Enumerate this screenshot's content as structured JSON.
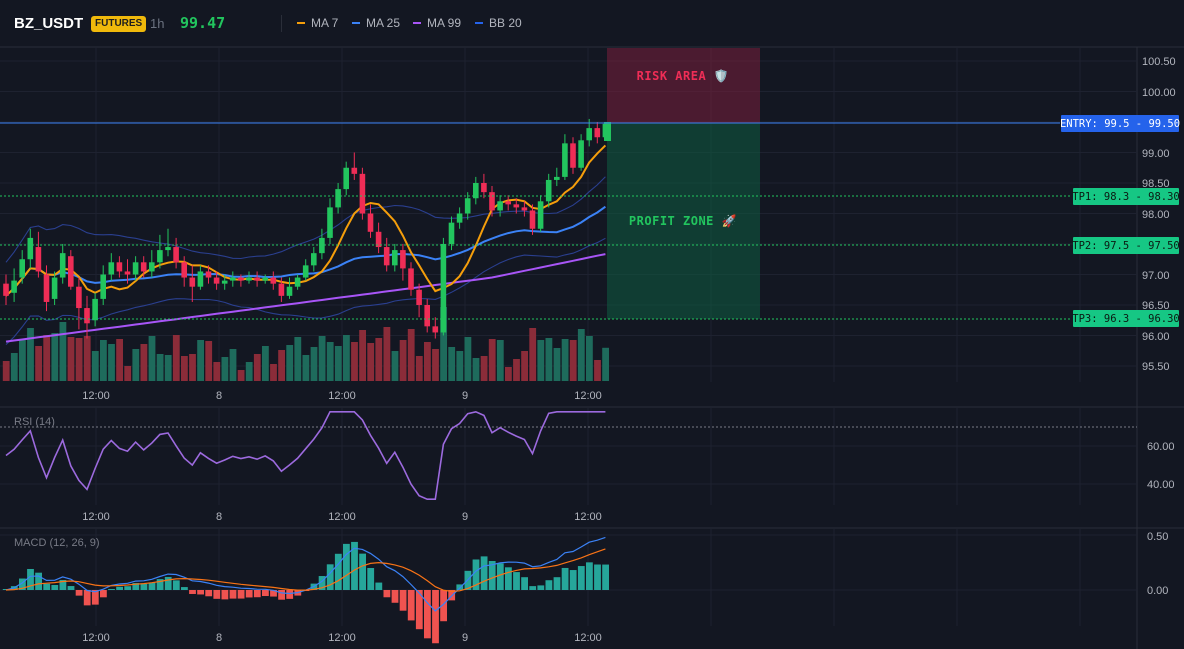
{
  "header": {
    "symbol": "BZ_USDT",
    "badge": "FUTURES",
    "timeframe": "1h",
    "price": "99.47",
    "indicators": [
      {
        "label": "MA 7",
        "color": "#f59e0b"
      },
      {
        "label": "MA 25",
        "color": "#3b82f6"
      },
      {
        "label": "MA 99",
        "color": "#a855f7"
      },
      {
        "label": "BB 20",
        "color": "#2563eb"
      }
    ]
  },
  "zones": {
    "risk_label": "RISK AREA 🛡️",
    "profit_label": "PROFIT ZONE 🚀"
  },
  "levels": {
    "entry": {
      "label": "ENTRY: 99.5 - 99.50",
      "price": 99.5
    },
    "tp1": {
      "label": "TP1: 98.3 - 98.30",
      "price": 98.3
    },
    "tp2": {
      "label": "TP2: 97.5 - 97.50",
      "price": 97.5
    },
    "tp3": {
      "label": "TP3: 96.3 - 96.30",
      "price": 96.3
    }
  },
  "price_axis": [
    "100.50",
    "100.00",
    "99.50",
    "99.00",
    "98.50",
    "98.00",
    "97.50",
    "97.00",
    "96.50",
    "96.00",
    "95.50"
  ],
  "time_axis": [
    "12:00",
    "8",
    "12:00",
    "9",
    "12:00"
  ],
  "rsi": {
    "title": "RSI (14)",
    "ticks": [
      "60.00",
      "40.00"
    ]
  },
  "macd": {
    "title": "MACD (12, 26, 9)",
    "ticks": [
      "0.50",
      "0.00"
    ]
  },
  "colors": {
    "up": "#22c55e",
    "down": "#ef2d56",
    "bg": "#131722",
    "grid": "#1e2230",
    "volume_up": "#1e6b5c",
    "volume_down": "#8b2c39"
  },
  "chart_data": {
    "type": "candlestick",
    "ylim": [
      95.3,
      100.7
    ],
    "candles": [
      [
        96.85,
        96.65,
        97.0,
        96.5
      ],
      [
        96.7,
        96.9,
        97.1,
        96.55
      ],
      [
        96.95,
        97.25,
        97.4,
        96.85
      ],
      [
        97.25,
        97.6,
        97.75,
        97.1
      ],
      [
        97.45,
        97.05,
        97.7,
        96.95
      ],
      [
        97.0,
        96.55,
        97.15,
        96.4
      ],
      [
        96.6,
        96.95,
        97.05,
        96.5
      ],
      [
        96.95,
        97.35,
        97.5,
        96.85
      ],
      [
        97.3,
        96.8,
        97.4,
        96.75
      ],
      [
        96.8,
        96.45,
        96.95,
        96.1
      ],
      [
        96.45,
        96.2,
        96.65,
        95.95
      ],
      [
        96.25,
        96.6,
        96.7,
        96.15
      ],
      [
        96.6,
        97.0,
        97.15,
        96.5
      ],
      [
        97.0,
        97.2,
        97.35,
        96.9
      ],
      [
        97.2,
        97.05,
        97.3,
        96.95
      ],
      [
        97.05,
        97.0,
        97.25,
        96.85
      ],
      [
        97.0,
        97.2,
        97.3,
        96.9
      ],
      [
        97.2,
        97.05,
        97.3,
        96.95
      ],
      [
        97.05,
        97.2,
        97.4,
        96.95
      ],
      [
        97.2,
        97.4,
        97.65,
        97.1
      ],
      [
        97.4,
        97.45,
        97.75,
        97.3
      ],
      [
        97.45,
        97.2,
        97.6,
        97.1
      ],
      [
        97.2,
        96.95,
        97.3,
        96.8
      ],
      [
        96.95,
        96.8,
        97.15,
        96.55
      ],
      [
        96.8,
        97.05,
        97.15,
        96.75
      ],
      [
        97.05,
        96.95,
        97.15,
        96.85
      ],
      [
        96.95,
        96.85,
        97.05,
        96.75
      ],
      [
        96.85,
        96.9,
        97.0,
        96.75
      ],
      [
        96.9,
        96.95,
        97.05,
        96.8
      ],
      [
        96.95,
        96.9,
        97.0,
        96.8
      ],
      [
        96.9,
        96.95,
        97.05,
        96.85
      ],
      [
        96.95,
        96.9,
        97.05,
        96.8
      ],
      [
        96.9,
        96.95,
        97.0,
        96.85
      ],
      [
        96.95,
        96.85,
        97.05,
        96.75
      ],
      [
        96.85,
        96.65,
        96.95,
        96.55
      ],
      [
        96.65,
        96.8,
        96.95,
        96.6
      ],
      [
        96.8,
        96.95,
        97.0,
        96.75
      ],
      [
        96.95,
        97.15,
        97.25,
        96.9
      ],
      [
        97.15,
        97.35,
        97.45,
        97.05
      ],
      [
        97.35,
        97.6,
        97.75,
        97.25
      ],
      [
        97.6,
        98.1,
        98.25,
        97.5
      ],
      [
        98.1,
        98.4,
        98.5,
        98.0
      ],
      [
        98.4,
        98.75,
        98.85,
        98.3
      ],
      [
        98.75,
        98.65,
        99.0,
        98.55
      ],
      [
        98.65,
        98.0,
        98.75,
        97.9
      ],
      [
        98.0,
        97.7,
        98.15,
        97.6
      ],
      [
        97.7,
        97.45,
        97.85,
        97.35
      ],
      [
        97.45,
        97.15,
        97.6,
        97.05
      ],
      [
        97.15,
        97.4,
        97.5,
        97.05
      ],
      [
        97.4,
        97.1,
        97.5,
        96.9
      ],
      [
        97.1,
        96.75,
        97.2,
        96.65
      ],
      [
        96.75,
        96.5,
        96.85,
        96.3
      ],
      [
        96.5,
        96.15,
        96.6,
        96.05
      ],
      [
        96.15,
        96.05,
        96.3,
        95.95
      ],
      [
        96.05,
        97.5,
        97.6,
        96.0
      ],
      [
        97.5,
        97.85,
        97.95,
        97.4
      ],
      [
        97.85,
        98.0,
        98.1,
        97.75
      ],
      [
        98.0,
        98.25,
        98.35,
        97.9
      ],
      [
        98.25,
        98.5,
        98.6,
        98.15
      ],
      [
        98.5,
        98.35,
        98.65,
        98.25
      ],
      [
        98.35,
        98.05,
        98.45,
        97.95
      ],
      [
        98.05,
        98.2,
        98.3,
        97.95
      ],
      [
        98.2,
        98.15,
        98.3,
        98.05
      ],
      [
        98.15,
        98.1,
        98.25,
        98.0
      ],
      [
        98.1,
        98.05,
        98.2,
        97.95
      ],
      [
        98.05,
        97.75,
        98.15,
        97.65
      ],
      [
        97.75,
        98.2,
        98.3,
        97.7
      ],
      [
        98.2,
        98.55,
        98.65,
        98.1
      ],
      [
        98.55,
        98.6,
        98.75,
        98.45
      ],
      [
        98.6,
        99.15,
        99.3,
        98.55
      ],
      [
        99.15,
        98.75,
        99.25,
        98.65
      ],
      [
        98.75,
        99.2,
        99.3,
        98.7
      ],
      [
        99.2,
        99.4,
        99.55,
        99.1
      ],
      [
        99.4,
        99.25,
        99.5,
        99.15
      ],
      [
        99.25,
        99.47,
        99.5,
        99.2
      ]
    ]
  }
}
